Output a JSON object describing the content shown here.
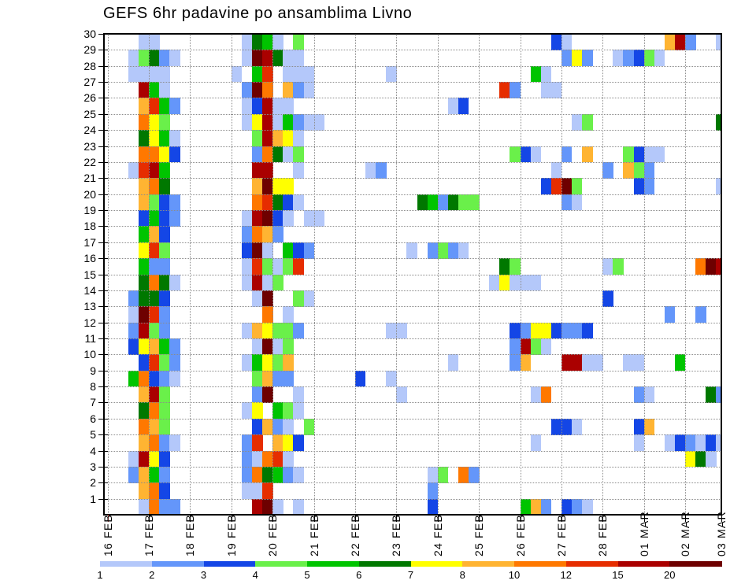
{
  "chart_data": {
    "type": "heatmap",
    "title": "GEFS 6hr padavine po ansamblima Livno",
    "xlabel": "",
    "ylabel": "",
    "x_tick_labels": [
      "16 FEB",
      "17 FEB",
      "18 FEB",
      "19 FEB",
      "20 FEB",
      "21 FEB",
      "22 FEB",
      "23 FEB",
      "24 FEB",
      "25 FEB",
      "26 FEB",
      "27 FEB",
      "28 FEB",
      "01 MAR",
      "02 MAR",
      "03 MAR"
    ],
    "y_tick_labels": [
      "1",
      "2",
      "3",
      "4",
      "5",
      "6",
      "7",
      "8",
      "9",
      "10",
      "11",
      "12",
      "13",
      "14",
      "15",
      "16",
      "17",
      "18",
      "19",
      "20",
      "21",
      "22",
      "23",
      "24",
      "25",
      "26",
      "27",
      "28",
      "29",
      "30"
    ],
    "ylim": [
      0,
      30
    ],
    "grid": true,
    "colorbar": {
      "placement": "bottom",
      "labels": [
        "1",
        "2",
        "3",
        "4",
        "5",
        "6",
        "7",
        "8",
        "10",
        "12",
        "15",
        "20"
      ],
      "colors": [
        "#b4c8fa",
        "#6496fa",
        "#1446e6",
        "#6af04a",
        "#00c400",
        "#007800",
        "#ffff00",
        "#ffb432",
        "#ff7800",
        "#e62d00",
        "#aa0000",
        "#6e0000"
      ]
    },
    "level_letters": "abcdefghijkl",
    "rows_top_to_bottom": [
      "3a 4a 13a 14f 15e 16a 18d 43c 44a 54h 55k 56b 59a",
      "2a 3d 4f 5b 6a 13a 14l 15k 16f 17a 18a 44b 45g 46b 49a 50b 51c 52d 53a",
      "2a 3a 4a 5a 12a 14e 15j 17a 18a 19a 27a 41e 42a",
      "3k 4e 5a 13b 14l 15i 17h 18b 19a 38j 39b 42a 43a",
      "3h 4j 5e 6b 13a 14c 15k 16a 17a 33a 34c",
      "3i 4g 5d 13a 14g 15k 16a 17e 18b 19a 20a 45a 46d 59f",
      "3f 4g 5e 6a 14d 15k 16h 17g 18a",
      "3i 4i 5g 6c 14b 15i 16f 17a 18d 39d 40c 41a 44b 46h 50d 51c 52a 53a",
      "2a 3j 4k 5e 14k 15k 18a 25a 26b 43a 48b 50h 51d 52b",
      "3h 4i 5f 14h 15l 16g 17g 42c 43j 44l 45d 51c 52b 59a",
      "3h 4d 5c 6b 14i 15j 16f 17c 18a 30f 31e 32b 33f 34d 35d 44b 45a",
      "3c 4e 5c 6b 13a 14k 15l 16c 17a 19a 20a",
      "3e 4h 5c 13b 14i 15h 16b",
      "3g 4j 5d 13c 14l 15a 17e 18c 19b 29a 31b 32d 33b 34a",
      "3e 4b 5b 13a 14j 15d 16a 17d 18j 38f 39d 48a 49d 57i 58l 59k",
      "3f 4i 5f 6a 13a 14k 15a 16d 37a 38g 39a 40a 41a",
      "2b 3f 4f 5c 14a 15l 18d 19a 48c",
      "2a 3l 4j 5b 15i 17a 54b 57b",
      "2b 3k 4d 5b 13a 14h 15g 16d 17d 18b 27a 28a 39c 40b 41g 42g 43c 44b 45b 46c",
      "2c 3g 4h 5e 6b 14a 15l 16a 17d 39b 40k 41d 42a",
      "3c 4j 5d 6b 13a 14e 15g 16d 17h 33a 39b 40h 44k 45k 46a 47a 50a 51a 55e",
      "2e 3i 4c 5b 6a 14d 15h 16b 17b 24c 27a",
      "3h 4k 5d 14b 15l 18a 28a 41a 42i 51b 52a 58f 59b",
      "3f 4i 5d 13a 14g 16e 17d 18a",
      "3i 4h 5d 14c 15h 16b 17a 19d 43c 44c 45a 51c 52h",
      "3h 4i 5b 6a 13b 14j 16h 17g 18c 41a 51a 54a 55c 56b 57a 58c 59a",
      "2a 3k 4g 5c 13b 14a 15i 16j 17a 56g 57f 58a",
      "2b 3h 4e 5b 13b 14i 15f 16e 17b 18a 31a 32d 34i 35b",
      "3h 4i 5c 13a 14a 15j 31b",
      "3a 4i 5b 6b 14k 15l 16a 18a 31c 40e 41h 42b 44c 45b 46a"
    ],
    "axis_color": "#000000",
    "grid_color": "#8c8c8c",
    "first_x_tick_color": "#d04040"
  }
}
